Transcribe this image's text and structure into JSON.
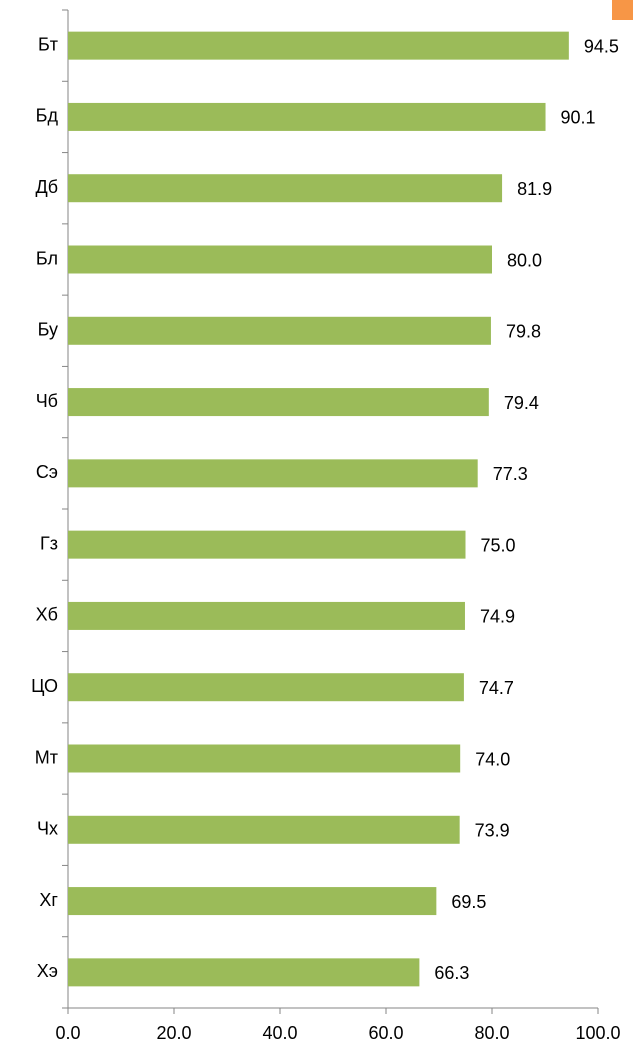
{
  "chart_data": {
    "type": "bar",
    "orientation": "horizontal",
    "categories": [
      "Бт",
      "Бд",
      "Дб",
      "Бл",
      "Бу",
      "Чб",
      "Сэ",
      "Гз",
      "Хб",
      "ЦО",
      "Мт",
      "Чх",
      "Хг",
      "Хэ"
    ],
    "values": [
      94.5,
      90.1,
      81.9,
      80,
      79.8,
      79.4,
      77.3,
      75,
      74.9,
      74.7,
      74,
      73.9,
      69.5,
      66.3
    ],
    "value_labels": [
      "94.5",
      "90.1",
      "81.9",
      "80.0",
      "79.8",
      "79.4",
      "77.3",
      "75.0",
      "74.9",
      "74.7",
      "74.0",
      "73.9",
      "69.5",
      "66.3"
    ],
    "color": "#9bbb59",
    "xlim": [
      0,
      100
    ],
    "xticks": [
      {
        "value": 0,
        "label": "0.0"
      },
      {
        "value": 20,
        "label": "20.0"
      },
      {
        "value": 40,
        "label": "40.0"
      },
      {
        "value": 60,
        "label": "60.0"
      },
      {
        "value": 80,
        "label": "80.0"
      },
      {
        "value": 100,
        "label": "100.0"
      }
    ]
  }
}
